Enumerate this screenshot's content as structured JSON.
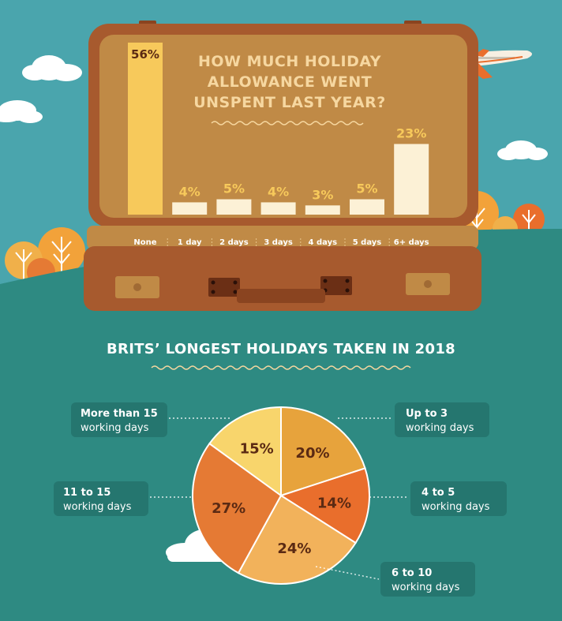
{
  "colors": {
    "sky": "#4aa5ad",
    "ground": "#2e8a82",
    "suitcase_frame": "#a75a2e",
    "suitcase_inner": "#c08a46",
    "bar_yellow": "#f7c95b",
    "bar_cream": "#fcf1d6",
    "title_text": "#f6d7a0",
    "pie_text": "#5b2a13",
    "pie_colors": [
      "#e7a33c",
      "#e96e2c",
      "#f2b25b",
      "#e57a34",
      "#f8d56c"
    ]
  },
  "chart_data": [
    {
      "type": "bar",
      "title": "HOW MUCH HOLIDAY ALLOWANCE WENT UNSPENT LAST YEAR?",
      "title_lines": [
        "HOW MUCH HOLIDAY",
        "ALLOWANCE WENT",
        "UNSPENT LAST YEAR?"
      ],
      "categories": [
        "None",
        "1 day",
        "2 days",
        "3 days",
        "4 days",
        "5 days",
        "6+ days"
      ],
      "values": [
        56,
        4,
        5,
        4,
        3,
        5,
        23
      ],
      "value_labels": [
        "56%",
        "4%",
        "5%",
        "4%",
        "3%",
        "5%",
        "23%"
      ],
      "unit": "%",
      "ylim": [
        0,
        56
      ],
      "grid": false
    },
    {
      "type": "pie",
      "title": "BRITS’ LONGEST HOLIDAYS TAKEN IN 2018",
      "slices": [
        {
          "label_line1": "Up to 3",
          "label_line2": "working days",
          "value": 20,
          "value_label": "20%"
        },
        {
          "label_line1": "4 to 5",
          "label_line2": "working days",
          "value": 14,
          "value_label": "14%"
        },
        {
          "label_line1": "6 to 10",
          "label_line2": "working days",
          "value": 24,
          "value_label": "24%"
        },
        {
          "label_line1": "11 to 15",
          "label_line2": "working days",
          "value": 27,
          "value_label": "27%"
        },
        {
          "label_line1": "More than 15",
          "label_line2": "working days",
          "value": 15,
          "value_label": "15%"
        }
      ]
    }
  ]
}
